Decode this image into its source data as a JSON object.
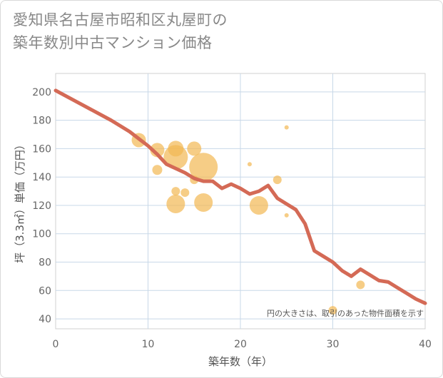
{
  "title": {
    "line1": "愛知県名古屋市昭和区丸屋町の",
    "line2": "築年数別中古マンション価格"
  },
  "note": "円の大きさは、取引のあった物件面積を示す",
  "colors": {
    "line": "#d46a56",
    "bubble": "#f2b852",
    "grid": "#c8d8e8",
    "axis": "#aaaaaa"
  },
  "chart_data": {
    "type": "scatter",
    "xlabel": "築年数（年）",
    "ylabel": "坪（3.3㎡）単価（万円）",
    "xlim": [
      0,
      40
    ],
    "ylim": [
      33,
      213
    ],
    "xticks": [
      0,
      10,
      20,
      30,
      40
    ],
    "yticks": [
      40,
      60,
      80,
      100,
      120,
      140,
      160,
      180,
      200
    ],
    "grid": true,
    "line_series": {
      "x": [
        0,
        2,
        4,
        6,
        8,
        9,
        10,
        11,
        12,
        13,
        14,
        15,
        16,
        17,
        18,
        19,
        20,
        21,
        22,
        23,
        24,
        25,
        26,
        27,
        28,
        29,
        30,
        31,
        32,
        33,
        34,
        35,
        36,
        37,
        38,
        39,
        40
      ],
      "y": [
        201,
        194,
        187,
        180,
        172,
        167,
        162,
        156,
        149,
        146,
        143,
        139,
        137,
        137,
        132,
        135,
        132,
        128,
        130,
        134,
        125,
        121,
        117,
        107,
        88,
        84,
        80,
        74,
        70,
        75,
        71,
        67,
        66,
        62,
        58,
        54,
        51
      ]
    },
    "bubbles": [
      {
        "x": 9,
        "y": 166,
        "size": 10
      },
      {
        "x": 11,
        "y": 159,
        "size": 10
      },
      {
        "x": 11,
        "y": 145,
        "size": 7
      },
      {
        "x": 13,
        "y": 160,
        "size": 11
      },
      {
        "x": 13,
        "y": 154,
        "size": 17
      },
      {
        "x": 13,
        "y": 130,
        "size": 6
      },
      {
        "x": 13,
        "y": 121,
        "size": 13
      },
      {
        "x": 14,
        "y": 129,
        "size": 6
      },
      {
        "x": 15,
        "y": 160,
        "size": 10
      },
      {
        "x": 15,
        "y": 138,
        "size": 6
      },
      {
        "x": 16,
        "y": 147,
        "size": 20
      },
      {
        "x": 16,
        "y": 122,
        "size": 13
      },
      {
        "x": 21,
        "y": 149,
        "size": 3
      },
      {
        "x": 22,
        "y": 120,
        "size": 13
      },
      {
        "x": 24,
        "y": 138,
        "size": 6
      },
      {
        "x": 25,
        "y": 175,
        "size": 3
      },
      {
        "x": 25,
        "y": 113,
        "size": 3
      },
      {
        "x": 30,
        "y": 46,
        "size": 6
      },
      {
        "x": 33,
        "y": 64,
        "size": 6
      }
    ]
  }
}
